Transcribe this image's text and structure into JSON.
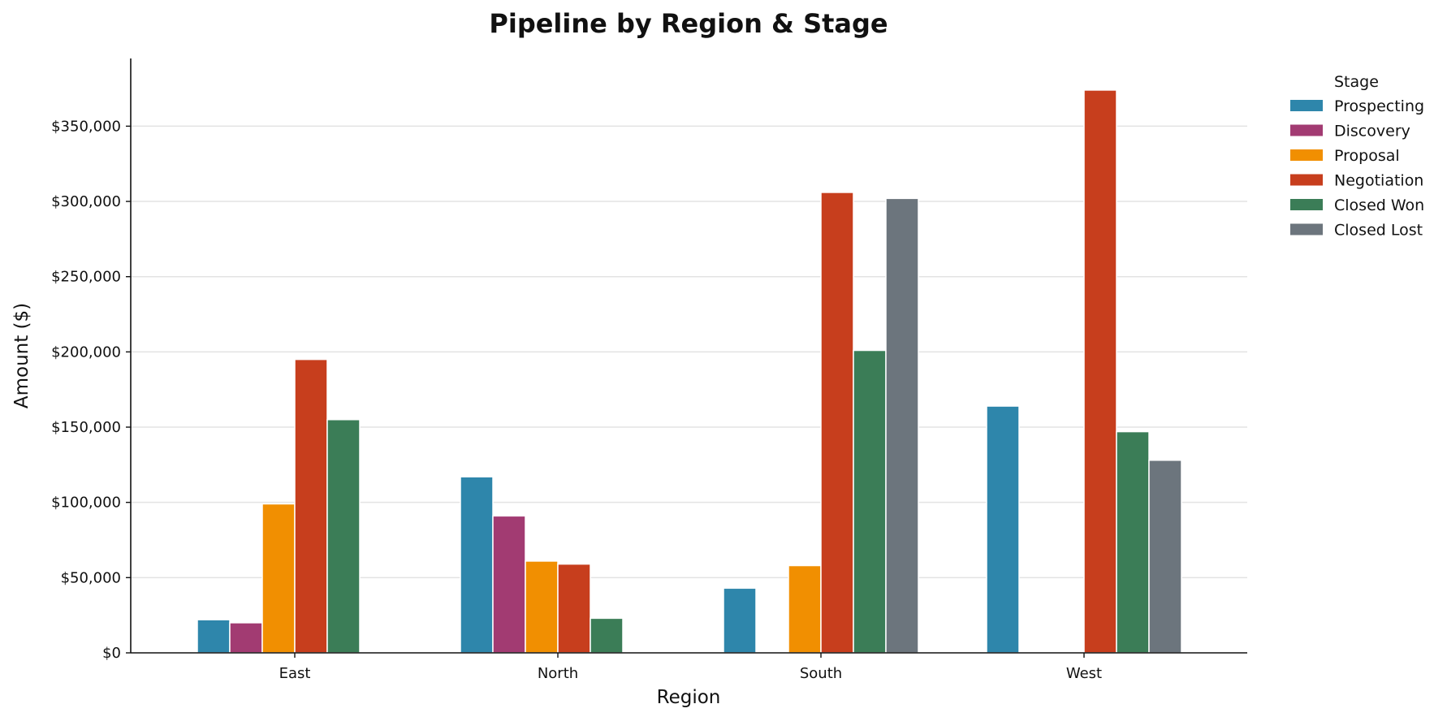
{
  "chart_data": {
    "type": "bar",
    "title": "Pipeline by Region & Stage",
    "xlabel": "Region",
    "ylabel": "Amount ($)",
    "ylim": [
      0,
      395000
    ],
    "yticks": [
      0,
      50000,
      100000,
      150000,
      200000,
      250000,
      300000,
      350000
    ],
    "ytick_labels": [
      "$0",
      "$50,000",
      "$100,000",
      "$150,000",
      "$200,000",
      "$250,000",
      "$300,000",
      "$350,000"
    ],
    "grid": "horizontal",
    "legend": {
      "title": "Stage",
      "placement": "upper-right outside"
    },
    "categories": [
      "East",
      "North",
      "South",
      "West"
    ],
    "series": [
      {
        "name": "Prospecting",
        "color": "#2e86ab",
        "values": [
          22000,
          117000,
          43000,
          164000
        ]
      },
      {
        "name": "Discovery",
        "color": "#a23b72",
        "values": [
          20000,
          91000,
          0,
          0
        ]
      },
      {
        "name": "Proposal",
        "color": "#f18f01",
        "values": [
          99000,
          61000,
          58000,
          0
        ]
      },
      {
        "name": "Negotiation",
        "color": "#c73e1d",
        "values": [
          195000,
          59000,
          306000,
          374000
        ]
      },
      {
        "name": "Closed Won",
        "color": "#3b7d57",
        "values": [
          155000,
          23000,
          201000,
          147000
        ]
      },
      {
        "name": "Closed Lost",
        "color": "#6c757d",
        "values": [
          0,
          0,
          302000,
          128000
        ]
      }
    ]
  }
}
